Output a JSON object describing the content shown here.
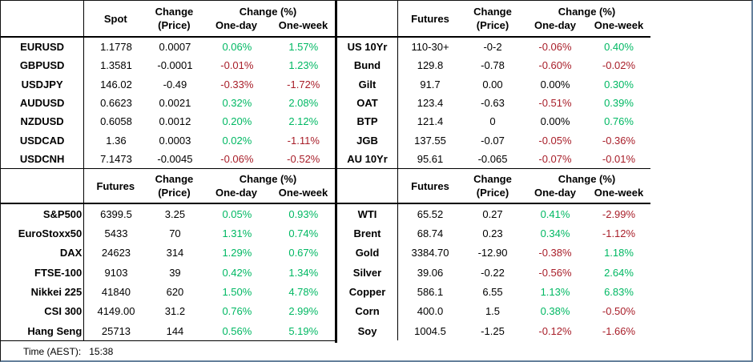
{
  "colors": {
    "positive": "#00b863",
    "negative": "#a81e29",
    "neutral": "#000000"
  },
  "footer": {
    "time_label": "Time (AEST):",
    "time_value": "15:38"
  },
  "tables": {
    "fx": {
      "header": {
        "value_label": "Spot",
        "change_line1": "Change",
        "change_line2": "(Price)",
        "pct_title": "Change (%)",
        "one_day": "One-day",
        "one_week": "One-week"
      },
      "rows": [
        {
          "label": "EURUSD",
          "price": "1.1778",
          "change": "0.0007",
          "d1": "0.06%",
          "w1": "1.57%"
        },
        {
          "label": "GBPUSD",
          "price": "1.3581",
          "change": "-0.0001",
          "d1": "-0.01%",
          "w1": "1.23%"
        },
        {
          "label": "USDJPY",
          "price": "146.02",
          "change": "-0.49",
          "d1": "-0.33%",
          "w1": "-1.72%"
        },
        {
          "label": "AUDUSD",
          "price": "0.6623",
          "change": "0.0021",
          "d1": "0.32%",
          "w1": "2.08%"
        },
        {
          "label": "NZDUSD",
          "price": "0.6058",
          "change": "0.0012",
          "d1": "0.20%",
          "w1": "2.12%"
        },
        {
          "label": "USDCAD",
          "price": "1.36",
          "change": "0.0003",
          "d1": "0.02%",
          "w1": "-1.11%"
        },
        {
          "label": "USDCNH",
          "price": "7.1473",
          "change": "-0.0045",
          "d1": "-0.06%",
          "w1": "-0.52%"
        }
      ]
    },
    "bonds": {
      "header": {
        "value_label": "Futures",
        "change_line1": "Change",
        "change_line2": "(Price)",
        "pct_title": "Change (%)",
        "one_day": "One-day",
        "one_week": "One-week"
      },
      "rows": [
        {
          "label": "US 10Yr",
          "price": "110-30+",
          "change": "-0-2",
          "d1": "-0.06%",
          "w1": "0.40%"
        },
        {
          "label": "Bund",
          "price": "129.8",
          "change": "-0.78",
          "d1": "-0.60%",
          "w1": "-0.02%"
        },
        {
          "label": "Gilt",
          "price": "91.7",
          "change": "0.00",
          "d1": "0.00%",
          "w1": "0.30%"
        },
        {
          "label": "OAT",
          "price": "123.4",
          "change": "-0.63",
          "d1": "-0.51%",
          "w1": "0.39%"
        },
        {
          "label": "BTP",
          "price": "121.4",
          "change": "0",
          "d1": "0.00%",
          "w1": "0.76%"
        },
        {
          "label": "JGB",
          "price": "137.55",
          "change": "-0.07",
          "d1": "-0.05%",
          "w1": "-0.36%"
        },
        {
          "label": "AU 10Yr",
          "price": "95.61",
          "change": "-0.065",
          "d1": "-0.07%",
          "w1": "-0.01%"
        }
      ]
    },
    "equities": {
      "header": {
        "value_label": "Futures",
        "change_line1": "Change",
        "change_line2": "(Price)",
        "pct_title": "Change (%)",
        "one_day": "One-day",
        "one_week": "One-week"
      },
      "rows": [
        {
          "label": "S&P500",
          "price": "6399.5",
          "change": "3.25",
          "d1": "0.05%",
          "w1": "0.93%"
        },
        {
          "label": "EuroStoxx50",
          "price": "5433",
          "change": "70",
          "d1": "1.31%",
          "w1": "0.74%"
        },
        {
          "label": "DAX",
          "price": "24623",
          "change": "314",
          "d1": "1.29%",
          "w1": "0.67%"
        },
        {
          "label": "FTSE-100",
          "price": "9103",
          "change": "39",
          "d1": "0.42%",
          "w1": "1.34%"
        },
        {
          "label": "Nikkei 225",
          "price": "41840",
          "change": "620",
          "d1": "1.50%",
          "w1": "4.78%"
        },
        {
          "label": "CSI 300",
          "price": "4149.00",
          "change": "31.2",
          "d1": "0.76%",
          "w1": "2.99%"
        },
        {
          "label": "Hang Seng",
          "price": "25713",
          "change": "144",
          "d1": "0.56%",
          "w1": "5.19%"
        }
      ]
    },
    "commodities": {
      "header": {
        "value_label": "Futures",
        "change_line1": "Change",
        "change_line2": "(Price)",
        "pct_title": "Change (%)",
        "one_day": "One-day",
        "one_week": "One-week"
      },
      "rows": [
        {
          "label": "WTI",
          "price": "65.52",
          "change": "0.27",
          "d1": "0.41%",
          "w1": "-2.99%"
        },
        {
          "label": "Brent",
          "price": "68.74",
          "change": "0.23",
          "d1": "0.34%",
          "w1": "-1.12%"
        },
        {
          "label": "Gold",
          "price": "3384.70",
          "change": "-12.90",
          "d1": "-0.38%",
          "w1": "1.18%"
        },
        {
          "label": "Silver",
          "price": "39.06",
          "change": "-0.22",
          "d1": "-0.56%",
          "w1": "2.64%"
        },
        {
          "label": "Copper",
          "price": "586.1",
          "change": "6.55",
          "d1": "1.13%",
          "w1": "6.83%"
        },
        {
          "label": "Corn",
          "price": "400.0",
          "change": "1.5",
          "d1": "0.38%",
          "w1": "-0.50%"
        },
        {
          "label": "Soy",
          "price": "1004.5",
          "change": "-1.25",
          "d1": "-0.12%",
          "w1": "-1.66%"
        }
      ]
    }
  }
}
